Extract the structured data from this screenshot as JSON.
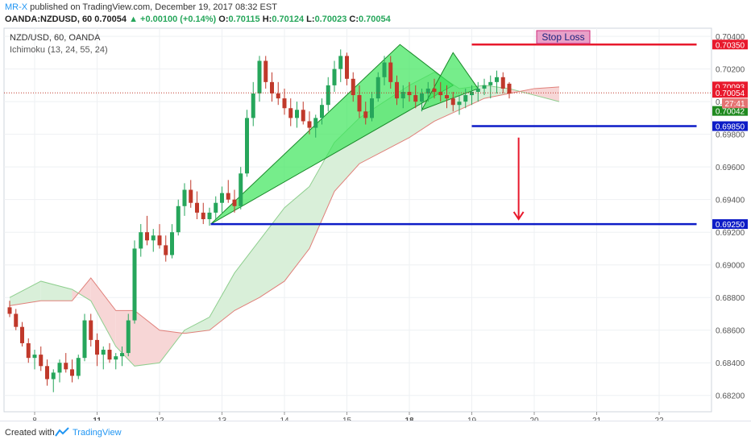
{
  "header": {
    "author": "MR-X",
    "published": "published on TradingView.com, December 19, 2017 08:32 EST",
    "symbol": "OANDA:NZDUSD, 60",
    "last": "0.70054",
    "change": "+0.00100 (+0.14%)",
    "open_label": "O:",
    "open": "0.70115",
    "high_label": "H:",
    "high": "0.70124",
    "low_label": "L:",
    "low": "0.70023",
    "close_label": "C:",
    "close": "0.70054"
  },
  "legend": {
    "symbol_line": "NZD/USD, 60, OANDA",
    "indicator_line": "Ichimoku (13, 24, 55, 24)"
  },
  "annotations": {
    "stop_loss_label": "Stop Loss"
  },
  "footer": {
    "created_with": "Created with",
    "brand": "TradingView"
  },
  "colors": {
    "up": "#26a65b",
    "down": "#c0392b",
    "stop_line": "#e8192c",
    "target_line": "#0d1cc7",
    "pattern_fill": "#3ce65a",
    "cloud_bull": "#d9efd9",
    "cloud_bear": "#f7d6d6"
  },
  "chart_data": {
    "type": "candlestick",
    "symbol": "NZD/USD",
    "timeframe": "60",
    "y_axis": {
      "min": 0.681,
      "max": 0.7045,
      "ticks": [
        "0.68200",
        "0.68400",
        "0.68600",
        "0.68800",
        "0.69000",
        "0.69200",
        "0.69400",
        "0.69600",
        "0.69800",
        "0.70000",
        "0.70200",
        "0.70400"
      ]
    },
    "x_axis": {
      "ticks": [
        {
          "label": "8",
          "pos": 0.4
        },
        {
          "label": "11",
          "pos": 1.4
        },
        {
          "label": "12",
          "pos": 2.4
        },
        {
          "label": "13",
          "pos": 3.4
        },
        {
          "label": "14",
          "pos": 4.4
        },
        {
          "label": "15",
          "pos": 5.4
        },
        {
          "label": "18",
          "pos": 6.4
        },
        {
          "label": "19",
          "pos": 7.4
        },
        {
          "label": "20",
          "pos": 8.4
        },
        {
          "label": "21",
          "pos": 9.4
        },
        {
          "label": "22",
          "pos": 10.4
        }
      ]
    },
    "price_labels": [
      {
        "value": 0.7035,
        "text": "0.70350",
        "bg": "#e8192c"
      },
      {
        "value": 0.70093,
        "text": "0.70093",
        "bg": "#e8192c"
      },
      {
        "value": 0.70054,
        "text": "0.70054",
        "bg": "#e8192c"
      },
      {
        "value": 0.70042,
        "text": "0.70042",
        "bg": "#1f8a1f",
        "offset": 20
      },
      {
        "value": 0.6985,
        "text": "0.69850",
        "bg": "#0d1cc7"
      },
      {
        "value": 0.6925,
        "text": "0.69250",
        "bg": "#0d1cc7"
      }
    ],
    "countdown": "27:41",
    "horizontal_lines": [
      {
        "name": "stop-loss",
        "value": 0.7035,
        "from": 7.4,
        "to": 11.0
      },
      {
        "name": "neckline-break",
        "value": 0.6985,
        "from": 7.4,
        "to": 11.0
      },
      {
        "name": "target",
        "value": 0.6925,
        "from": 3.22,
        "to": 11.0
      }
    ],
    "pattern": [
      {
        "name": "left-wing",
        "points": [
          [
            3.22,
            0.6925
          ],
          [
            6.25,
            0.7035
          ],
          [
            7.1,
            0.701
          ]
        ]
      },
      {
        "name": "right-shoulder",
        "points": [
          [
            6.6,
            0.6995
          ],
          [
            7.1,
            0.703
          ],
          [
            7.5,
            0.7008
          ]
        ]
      }
    ],
    "arrow": {
      "x": 8.15,
      "from": 0.6978,
      "to": 0.6928
    },
    "candles": [
      [
        0.0,
        0.6874,
        0.6878,
        0.6868,
        0.687
      ],
      [
        0.1,
        0.687,
        0.6873,
        0.686,
        0.6862
      ],
      [
        0.2,
        0.6862,
        0.6865,
        0.685,
        0.6852
      ],
      [
        0.3,
        0.6852,
        0.6855,
        0.684,
        0.6843
      ],
      [
        0.4,
        0.6843,
        0.6848,
        0.6836,
        0.6845
      ],
      [
        0.5,
        0.6845,
        0.685,
        0.6835,
        0.6838
      ],
      [
        0.6,
        0.6838,
        0.6842,
        0.6826,
        0.683
      ],
      [
        0.7,
        0.683,
        0.6836,
        0.6822,
        0.6834
      ],
      [
        0.8,
        0.6834,
        0.6842,
        0.6828,
        0.684
      ],
      [
        0.9,
        0.684,
        0.6846,
        0.6834,
        0.6836
      ],
      [
        1.0,
        0.6836,
        0.6842,
        0.6828,
        0.6832
      ],
      [
        1.1,
        0.6832,
        0.6845,
        0.683,
        0.6843
      ],
      [
        1.2,
        0.6843,
        0.687,
        0.6841,
        0.6866
      ],
      [
        1.3,
        0.6866,
        0.687,
        0.685,
        0.6854
      ],
      [
        1.4,
        0.6854,
        0.6858,
        0.6838,
        0.6845
      ],
      [
        1.5,
        0.6845,
        0.685,
        0.6836,
        0.6848
      ],
      [
        1.6,
        0.6848,
        0.6852,
        0.684,
        0.6842
      ],
      [
        1.7,
        0.6842,
        0.6846,
        0.6836,
        0.6844
      ],
      [
        1.8,
        0.6844,
        0.685,
        0.6838,
        0.6846
      ],
      [
        1.9,
        0.6846,
        0.687,
        0.6844,
        0.6866
      ],
      [
        2.0,
        0.6866,
        0.6915,
        0.6864,
        0.691
      ],
      [
        2.1,
        0.691,
        0.6925,
        0.6905,
        0.692
      ],
      [
        2.2,
        0.692,
        0.693,
        0.6912,
        0.6915
      ],
      [
        2.3,
        0.6915,
        0.6922,
        0.6908,
        0.6918
      ],
      [
        2.4,
        0.6918,
        0.6925,
        0.691,
        0.6912
      ],
      [
        2.5,
        0.6912,
        0.6918,
        0.6902,
        0.6906
      ],
      [
        2.6,
        0.6906,
        0.6925,
        0.6904,
        0.692
      ],
      [
        2.7,
        0.692,
        0.694,
        0.6918,
        0.6936
      ],
      [
        2.8,
        0.6936,
        0.695,
        0.693,
        0.6946
      ],
      [
        2.9,
        0.6946,
        0.6952,
        0.6935,
        0.6938
      ],
      [
        3.0,
        0.6938,
        0.6945,
        0.6928,
        0.6932
      ],
      [
        3.1,
        0.6932,
        0.6938,
        0.6925,
        0.6928
      ],
      [
        3.2,
        0.6928,
        0.6935,
        0.6924,
        0.6932
      ],
      [
        3.3,
        0.6932,
        0.6942,
        0.6928,
        0.6938
      ],
      [
        3.4,
        0.6938,
        0.6948,
        0.6932,
        0.6944
      ],
      [
        3.5,
        0.6944,
        0.6952,
        0.6938,
        0.694
      ],
      [
        3.6,
        0.694,
        0.6946,
        0.6932,
        0.6936
      ],
      [
        3.7,
        0.6936,
        0.696,
        0.6934,
        0.6956
      ],
      [
        3.8,
        0.6956,
        0.6995,
        0.6954,
        0.699
      ],
      [
        3.9,
        0.699,
        0.7012,
        0.6985,
        0.7005
      ],
      [
        4.0,
        0.7005,
        0.7028,
        0.7,
        0.7025
      ],
      [
        4.1,
        0.7025,
        0.7028,
        0.7008,
        0.7012
      ],
      [
        4.2,
        0.7012,
        0.7018,
        0.7,
        0.7005
      ],
      [
        4.3,
        0.7005,
        0.7012,
        0.6998,
        0.7002
      ],
      [
        4.4,
        0.7002,
        0.7008,
        0.6992,
        0.6996
      ],
      [
        4.5,
        0.6996,
        0.7002,
        0.6985,
        0.699
      ],
      [
        4.6,
        0.699,
        0.7,
        0.6984,
        0.6995
      ],
      [
        4.7,
        0.6995,
        0.7,
        0.6986,
        0.6988
      ],
      [
        4.8,
        0.6988,
        0.6994,
        0.698,
        0.6984
      ],
      [
        4.9,
        0.6984,
        0.6992,
        0.6978,
        0.699
      ],
      [
        5.0,
        0.699,
        0.7002,
        0.6986,
        0.6998
      ],
      [
        5.1,
        0.6998,
        0.7015,
        0.6994,
        0.701
      ],
      [
        5.2,
        0.701,
        0.7025,
        0.7006,
        0.702
      ],
      [
        5.3,
        0.702,
        0.7032,
        0.7012,
        0.7028
      ],
      [
        5.4,
        0.7028,
        0.703,
        0.701,
        0.7014
      ],
      [
        5.5,
        0.7014,
        0.7018,
        0.7,
        0.7004
      ],
      [
        5.6,
        0.7004,
        0.701,
        0.699,
        0.6994
      ],
      [
        5.7,
        0.6994,
        0.7,
        0.6986,
        0.699
      ],
      [
        5.8,
        0.699,
        0.7006,
        0.6988,
        0.7002
      ],
      [
        5.9,
        0.7002,
        0.7018,
        0.7,
        0.7015
      ],
      [
        6.0,
        0.7015,
        0.7028,
        0.701,
        0.7024
      ],
      [
        6.1,
        0.7024,
        0.7028,
        0.7008,
        0.7012
      ],
      [
        6.2,
        0.7012,
        0.7016,
        0.6998,
        0.7002
      ],
      [
        6.3,
        0.7002,
        0.701,
        0.6996,
        0.7006
      ],
      [
        6.4,
        0.7006,
        0.7012,
        0.7,
        0.7004
      ],
      [
        6.5,
        0.7004,
        0.701,
        0.6996,
        0.7
      ],
      [
        6.6,
        0.7,
        0.7008,
        0.6994,
        0.7005
      ],
      [
        6.7,
        0.7005,
        0.7012,
        0.7,
        0.7008
      ],
      [
        6.8,
        0.7008,
        0.7014,
        0.7002,
        0.7006
      ],
      [
        6.9,
        0.7006,
        0.7012,
        0.7,
        0.7004
      ],
      [
        7.0,
        0.7004,
        0.701,
        0.6996,
        0.7002
      ],
      [
        7.1,
        0.7002,
        0.7006,
        0.6994,
        0.6998
      ],
      [
        7.2,
        0.6998,
        0.7004,
        0.6992,
        0.7
      ],
      [
        7.3,
        0.7,
        0.7008,
        0.6996,
        0.7004
      ],
      [
        7.4,
        0.7004,
        0.701,
        0.6998,
        0.7006
      ],
      [
        7.5,
        0.7006,
        0.7012,
        0.7,
        0.7008
      ],
      [
        7.6,
        0.7008,
        0.7014,
        0.7004,
        0.701
      ],
      [
        7.7,
        0.701,
        0.7016,
        0.7002,
        0.7012
      ],
      [
        7.8,
        0.7012,
        0.7019,
        0.7005,
        0.7015
      ],
      [
        7.9,
        0.7015,
        0.7018,
        0.7005,
        0.7008
      ],
      [
        8.0,
        0.7011,
        0.7012,
        0.7002,
        0.7005
      ]
    ],
    "kumo": [
      {
        "x": 0.0,
        "a": 0.688,
        "b": 0.6875
      },
      {
        "x": 0.5,
        "a": 0.689,
        "b": 0.6878
      },
      {
        "x": 1.0,
        "a": 0.6885,
        "b": 0.6878
      },
      {
        "x": 1.3,
        "a": 0.6878,
        "b": 0.6892
      },
      {
        "x": 1.7,
        "a": 0.685,
        "b": 0.6872
      },
      {
        "x": 2.0,
        "a": 0.6838,
        "b": 0.6872
      },
      {
        "x": 2.4,
        "a": 0.684,
        "b": 0.686
      },
      {
        "x": 2.8,
        "a": 0.686,
        "b": 0.6858
      },
      {
        "x": 3.2,
        "a": 0.6868,
        "b": 0.686
      },
      {
        "x": 3.6,
        "a": 0.6895,
        "b": 0.6872
      },
      {
        "x": 4.0,
        "a": 0.6915,
        "b": 0.688
      },
      {
        "x": 4.4,
        "a": 0.6935,
        "b": 0.689
      },
      {
        "x": 4.8,
        "a": 0.6948,
        "b": 0.691
      },
      {
        "x": 5.2,
        "a": 0.6975,
        "b": 0.6945
      },
      {
        "x": 5.6,
        "a": 0.699,
        "b": 0.6962
      },
      {
        "x": 6.0,
        "a": 0.7,
        "b": 0.697
      },
      {
        "x": 6.4,
        "a": 0.701,
        "b": 0.6978
      },
      {
        "x": 6.8,
        "a": 0.7018,
        "b": 0.6988
      },
      {
        "x": 7.2,
        "a": 0.7008,
        "b": 0.6995
      },
      {
        "x": 7.6,
        "a": 0.701,
        "b": 0.7002
      },
      {
        "x": 8.0,
        "a": 0.7008,
        "b": 0.7005
      },
      {
        "x": 8.4,
        "a": 0.7004,
        "b": 0.7008
      },
      {
        "x": 8.8,
        "a": 0.7,
        "b": 0.7009
      }
    ]
  }
}
